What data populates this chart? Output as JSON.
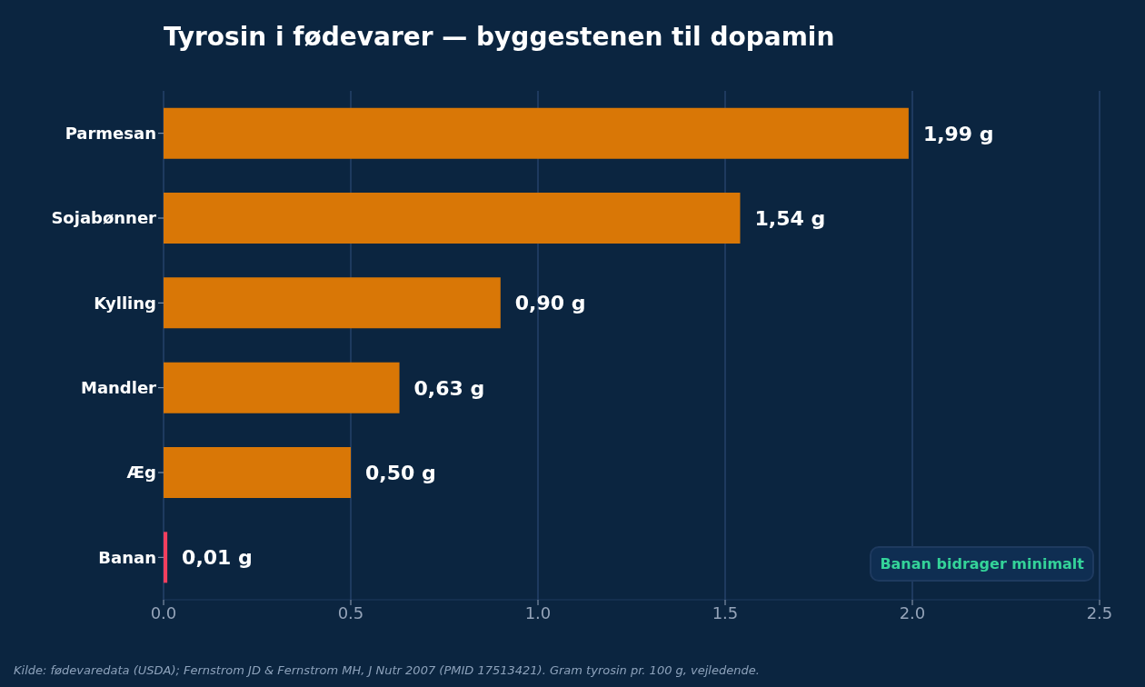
{
  "chart_data": {
    "type": "bar",
    "orientation": "horizontal",
    "title": "Tyrosin i fødevarer — byggestenen til dopamin",
    "categories": [
      "Parmesan",
      "Sojabønner",
      "Kylling",
      "Mandler",
      "Æg",
      "Banan"
    ],
    "values": [
      1.99,
      1.54,
      0.9,
      0.63,
      0.5,
      0.01
    ],
    "colors": [
      "#d97706",
      "#d97706",
      "#d97706",
      "#d97706",
      "#d97706",
      "#f43f5e"
    ],
    "value_labels": [
      "1,99 g",
      "1,54 g",
      "0,90 g",
      "0,63 g",
      "0,50 g",
      "0,01 g"
    ],
    "xlim": [
      0,
      2.5
    ],
    "xticks": [
      {
        "value": 0,
        "label": "0.0"
      },
      0.5,
      {
        "value": 1,
        "label": "1.0"
      },
      1.5,
      {
        "value": 2,
        "label": "2.0"
      },
      2.5
    ],
    "grid": "x",
    "annotations": [
      "Banan bidrager minimalt",
      "Kilde: fødevaredata (USDA); Fernstrom JD & Fernstrom MH, J Nutr 2007 (PMID 17513421). Gram tyrosin pr. 100 g, vejledende."
    ]
  }
}
